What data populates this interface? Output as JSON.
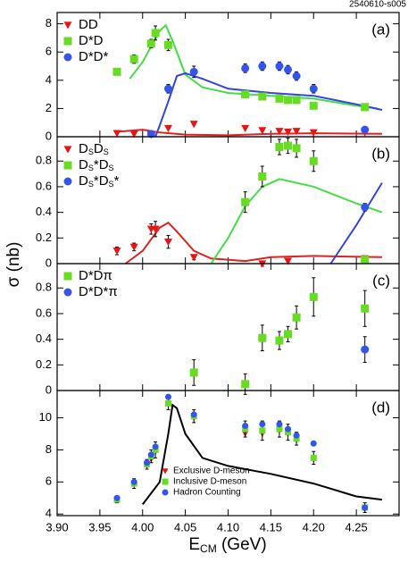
{
  "label": "2540610-s005",
  "ylabel": "σ (nb)",
  "xlabel": "ECM (GeV)",
  "chart_data": [
    {
      "type": "scatter",
      "panel": "(a)",
      "legend": "upper left",
      "xlim": [
        3.9,
        4.3
      ],
      "xticks": [
        {
          "value": 3.9,
          "label": "3.90"
        },
        3.95,
        {
          "value": 4.0,
          "label": "4.00"
        },
        4.05,
        {
          "value": 4.1,
          "label": "4.10"
        },
        4.15,
        {
          "value": 4.2,
          "label": "4.20"
        },
        4.25
      ],
      "ylim": [
        0,
        8.8
      ],
      "yticks": [
        0,
        2,
        4,
        6,
        8
      ],
      "series": [
        {
          "name": "DD",
          "color": "#ee1111",
          "marker": "triangle",
          "x": [
            3.97,
            3.99,
            4.01,
            4.03,
            4.06,
            4.12,
            4.14,
            4.16,
            4.17,
            4.18,
            4.2,
            4.26
          ],
          "values": [
            0.25,
            0.2,
            0.15,
            0.6,
            0.9,
            0.6,
            0.45,
            0.4,
            0.35,
            0.4,
            0.3,
            0.3
          ]
        },
        {
          "name": "D*D",
          "color": "#66dd22",
          "marker": "square",
          "x": [
            3.97,
            3.99,
            4.01,
            4.015,
            4.03,
            4.12,
            4.14,
            4.16,
            4.17,
            4.18,
            4.2,
            4.26
          ],
          "values": [
            4.6,
            5.5,
            6.6,
            7.35,
            6.5,
            3.0,
            2.85,
            2.7,
            2.6,
            2.6,
            2.2,
            2.1
          ],
          "errors": [
            0.2,
            0.3,
            0.3,
            0.5,
            0.4,
            0.2,
            0.2,
            0.2,
            0.2,
            0.2,
            0.2,
            0.2
          ]
        },
        {
          "name": "D*D*",
          "color": "#3355ee",
          "marker": "circle",
          "x": [
            4.01,
            4.03,
            4.06,
            4.12,
            4.14,
            4.16,
            4.17,
            4.18,
            4.2,
            4.26
          ],
          "values": [
            0.2,
            3.4,
            4.6,
            4.85,
            5.0,
            5.0,
            4.75,
            4.3,
            3.4,
            0.5
          ],
          "errors": [
            0.1,
            0.3,
            0.4,
            0.3,
            0.3,
            0.3,
            0.3,
            0.3,
            0.3,
            0.2
          ]
        }
      ],
      "curves": [
        {
          "color": "#44dd44",
          "x": [
            3.985,
            4.0,
            4.01,
            4.02,
            4.027,
            4.035,
            4.05,
            4.07,
            4.1,
            4.15,
            4.2,
            4.25,
            4.275
          ],
          "values": [
            4.1,
            5.3,
            6.4,
            7.5,
            7.9,
            6.8,
            4.4,
            3.5,
            3.1,
            2.9,
            2.7,
            2.2,
            2.0
          ]
        },
        {
          "color": "#3344dd",
          "x": [
            4.015,
            4.02,
            4.03,
            4.04,
            4.05,
            4.07,
            4.1,
            4.15,
            4.2,
            4.25,
            4.28
          ],
          "values": [
            0,
            0.8,
            2.5,
            4.3,
            4.5,
            4.1,
            3.4,
            3.1,
            2.9,
            2.3,
            1.9
          ]
        },
        {
          "color": "#dd2222",
          "x": [
            3.97,
            4.0,
            4.02,
            4.05,
            4.1,
            4.15,
            4.2,
            4.28
          ],
          "values": [
            0.35,
            0.5,
            0.3,
            0.15,
            0.1,
            0.2,
            0.25,
            0.2
          ]
        }
      ]
    },
    {
      "type": "scatter",
      "panel": "(b)",
      "legend": "upper left",
      "xlim": [
        3.9,
        4.3
      ],
      "xticks": [
        {
          "value": 3.9,
          "label": "3.90"
        },
        3.95,
        {
          "value": 4.0,
          "label": "4.00"
        },
        4.05,
        {
          "value": 4.1,
          "label": "4.10"
        },
        4.15,
        {
          "value": 4.2,
          "label": "4.20"
        },
        4.25
      ],
      "ylim": [
        0,
        0.99
      ],
      "yticks": [
        0,
        0.2,
        0.4,
        0.6,
        0.8
      ],
      "series": [
        {
          "name": "DsDs",
          "color": "#ee1111",
          "marker": "triangle",
          "x": [
            3.97,
            3.99,
            4.01,
            4.015,
            4.03,
            4.06,
            4.14,
            4.17,
            4.26
          ],
          "values": [
            0.1,
            0.13,
            0.27,
            0.27,
            0.17,
            0.05,
            0.0,
            0.02,
            0.04
          ],
          "errors": [
            0.03,
            0.03,
            0.04,
            0.06,
            0.05,
            0.02,
            0.02,
            0.02,
            0.02
          ]
        },
        {
          "name": "Ds*Ds",
          "color": "#66dd22",
          "marker": "square",
          "x": [
            4.12,
            4.14,
            4.16,
            4.17,
            4.18,
            4.2,
            4.26
          ],
          "values": [
            0.48,
            0.68,
            0.91,
            0.92,
            0.9,
            0.8,
            0.03
          ],
          "errors": [
            0.08,
            0.08,
            0.06,
            0.06,
            0.07,
            0.08,
            0.02
          ]
        },
        {
          "name": "Ds*Ds*",
          "color": "#3355ee",
          "marker": "circle",
          "x": [
            4.26
          ],
          "values": [
            0.44
          ],
          "errors": [
            0.03
          ]
        }
      ],
      "curves": [
        {
          "color": "#dd2222",
          "x": [
            3.98,
            4.0,
            4.02,
            4.03,
            4.04,
            4.06,
            4.08,
            4.12,
            4.15,
            4.2,
            4.28
          ],
          "values": [
            0.0,
            0.1,
            0.28,
            0.32,
            0.25,
            0.1,
            0.04,
            0.02,
            0.05,
            0.06,
            0.05
          ]
        },
        {
          "color": "#44dd44",
          "x": [
            4.08,
            4.1,
            4.12,
            4.14,
            4.16,
            4.2,
            4.25,
            4.28
          ],
          "values": [
            0,
            0.2,
            0.45,
            0.6,
            0.66,
            0.6,
            0.47,
            0.4
          ]
        },
        {
          "color": "#3344dd",
          "x": [
            4.22,
            4.25,
            4.28
          ],
          "values": [
            0,
            0.3,
            0.63
          ]
        }
      ]
    },
    {
      "type": "scatter",
      "panel": "(c)",
      "legend": "upper left",
      "xlim": [
        3.9,
        4.3
      ],
      "xticks": [
        {
          "value": 3.9,
          "label": "3.90"
        },
        3.95,
        {
          "value": 4.0,
          "label": "4.00"
        },
        4.05,
        {
          "value": 4.1,
          "label": "4.10"
        },
        4.15,
        {
          "value": 4.2,
          "label": "4.20"
        },
        4.25
      ],
      "ylim": [
        0,
        0.99
      ],
      "yticks": [
        0,
        0.2,
        0.4,
        0.6,
        0.8
      ],
      "series": [
        {
          "name": "D*Dπ",
          "color": "#66dd22",
          "marker": "square",
          "x": [
            4.06,
            4.12,
            4.14,
            4.16,
            4.17,
            4.18,
            4.2,
            4.26
          ],
          "values": [
            0.14,
            0.05,
            0.41,
            0.39,
            0.44,
            0.57,
            0.73,
            0.64
          ],
          "errors": [
            0.1,
            0.08,
            0.1,
            0.07,
            0.06,
            0.09,
            0.15,
            0.14
          ]
        },
        {
          "name": "D*D*π",
          "color": "#3355ee",
          "marker": "circle",
          "x": [
            4.26
          ],
          "values": [
            0.32
          ],
          "errors": [
            0.1
          ]
        }
      ]
    },
    {
      "type": "scatter",
      "panel": "(d)",
      "legend": "lower center",
      "xlim": [
        3.9,
        4.3
      ],
      "xticks": [
        {
          "value": 3.9,
          "label": "3.90"
        },
        3.95,
        {
          "value": 4.0,
          "label": "4.00"
        },
        4.05,
        {
          "value": 4.1,
          "label": "4.10"
        },
        4.15,
        {
          "value": 4.2,
          "label": "4.20"
        },
        4.25
      ],
      "ylim": [
        3.9,
        11.7
      ],
      "yticks": [
        4,
        6,
        8,
        10
      ],
      "series": [
        {
          "name": "Exclusive D-meson",
          "color": "#ee1111",
          "marker": "triangle",
          "x": [
            3.97,
            3.99,
            4.005,
            4.01,
            4.015,
            4.03,
            4.06,
            4.12,
            4.14,
            4.16,
            4.17,
            4.18,
            4.2,
            4.26
          ],
          "values": [
            4.9,
            5.9,
            7.0,
            7.4,
            7.9,
            10.9,
            10.0,
            9.0,
            9.0,
            9.2,
            9.0,
            8.6,
            7.4,
            4.3
          ]
        },
        {
          "name": "Inclusive D-meson",
          "color": "#66dd22",
          "marker": "square",
          "x": [
            3.97,
            3.99,
            4.005,
            4.01,
            4.015,
            4.03,
            4.06,
            4.12,
            4.14,
            4.16,
            4.17,
            4.18,
            4.2,
            4.26
          ],
          "values": [
            4.9,
            5.9,
            7.1,
            7.6,
            8.0,
            10.9,
            10.1,
            9.3,
            9.2,
            9.3,
            9.1,
            8.7,
            7.5,
            4.4
          ],
          "errors": [
            0.2,
            0.3,
            0.3,
            0.4,
            0.5,
            0.4,
            0.4,
            0.5,
            0.6,
            0.5,
            0.5,
            0.4,
            0.4,
            0.3
          ]
        },
        {
          "name": "Hadron Counting",
          "color": "#3355ee",
          "marker": "circle",
          "x": [
            3.97,
            3.99,
            4.005,
            4.01,
            4.015,
            4.03,
            4.06,
            4.12,
            4.14,
            4.16,
            4.17,
            4.18,
            4.2,
            4.26
          ],
          "values": [
            5.0,
            6.0,
            7.2,
            7.7,
            8.2,
            11.3,
            10.2,
            9.5,
            9.6,
            9.6,
            9.3,
            8.9,
            8.4,
            4.4
          ]
        }
      ],
      "curves": [
        {
          "color": "#000000",
          "x": [
            4.0,
            4.02,
            4.03,
            4.035,
            4.04,
            4.05,
            4.07,
            4.1,
            4.15,
            4.2,
            4.25,
            4.28
          ],
          "values": [
            4.6,
            6.0,
            9.0,
            10.8,
            10.6,
            9.0,
            7.5,
            7.0,
            6.5,
            5.9,
            5.1,
            4.9
          ]
        }
      ]
    }
  ]
}
